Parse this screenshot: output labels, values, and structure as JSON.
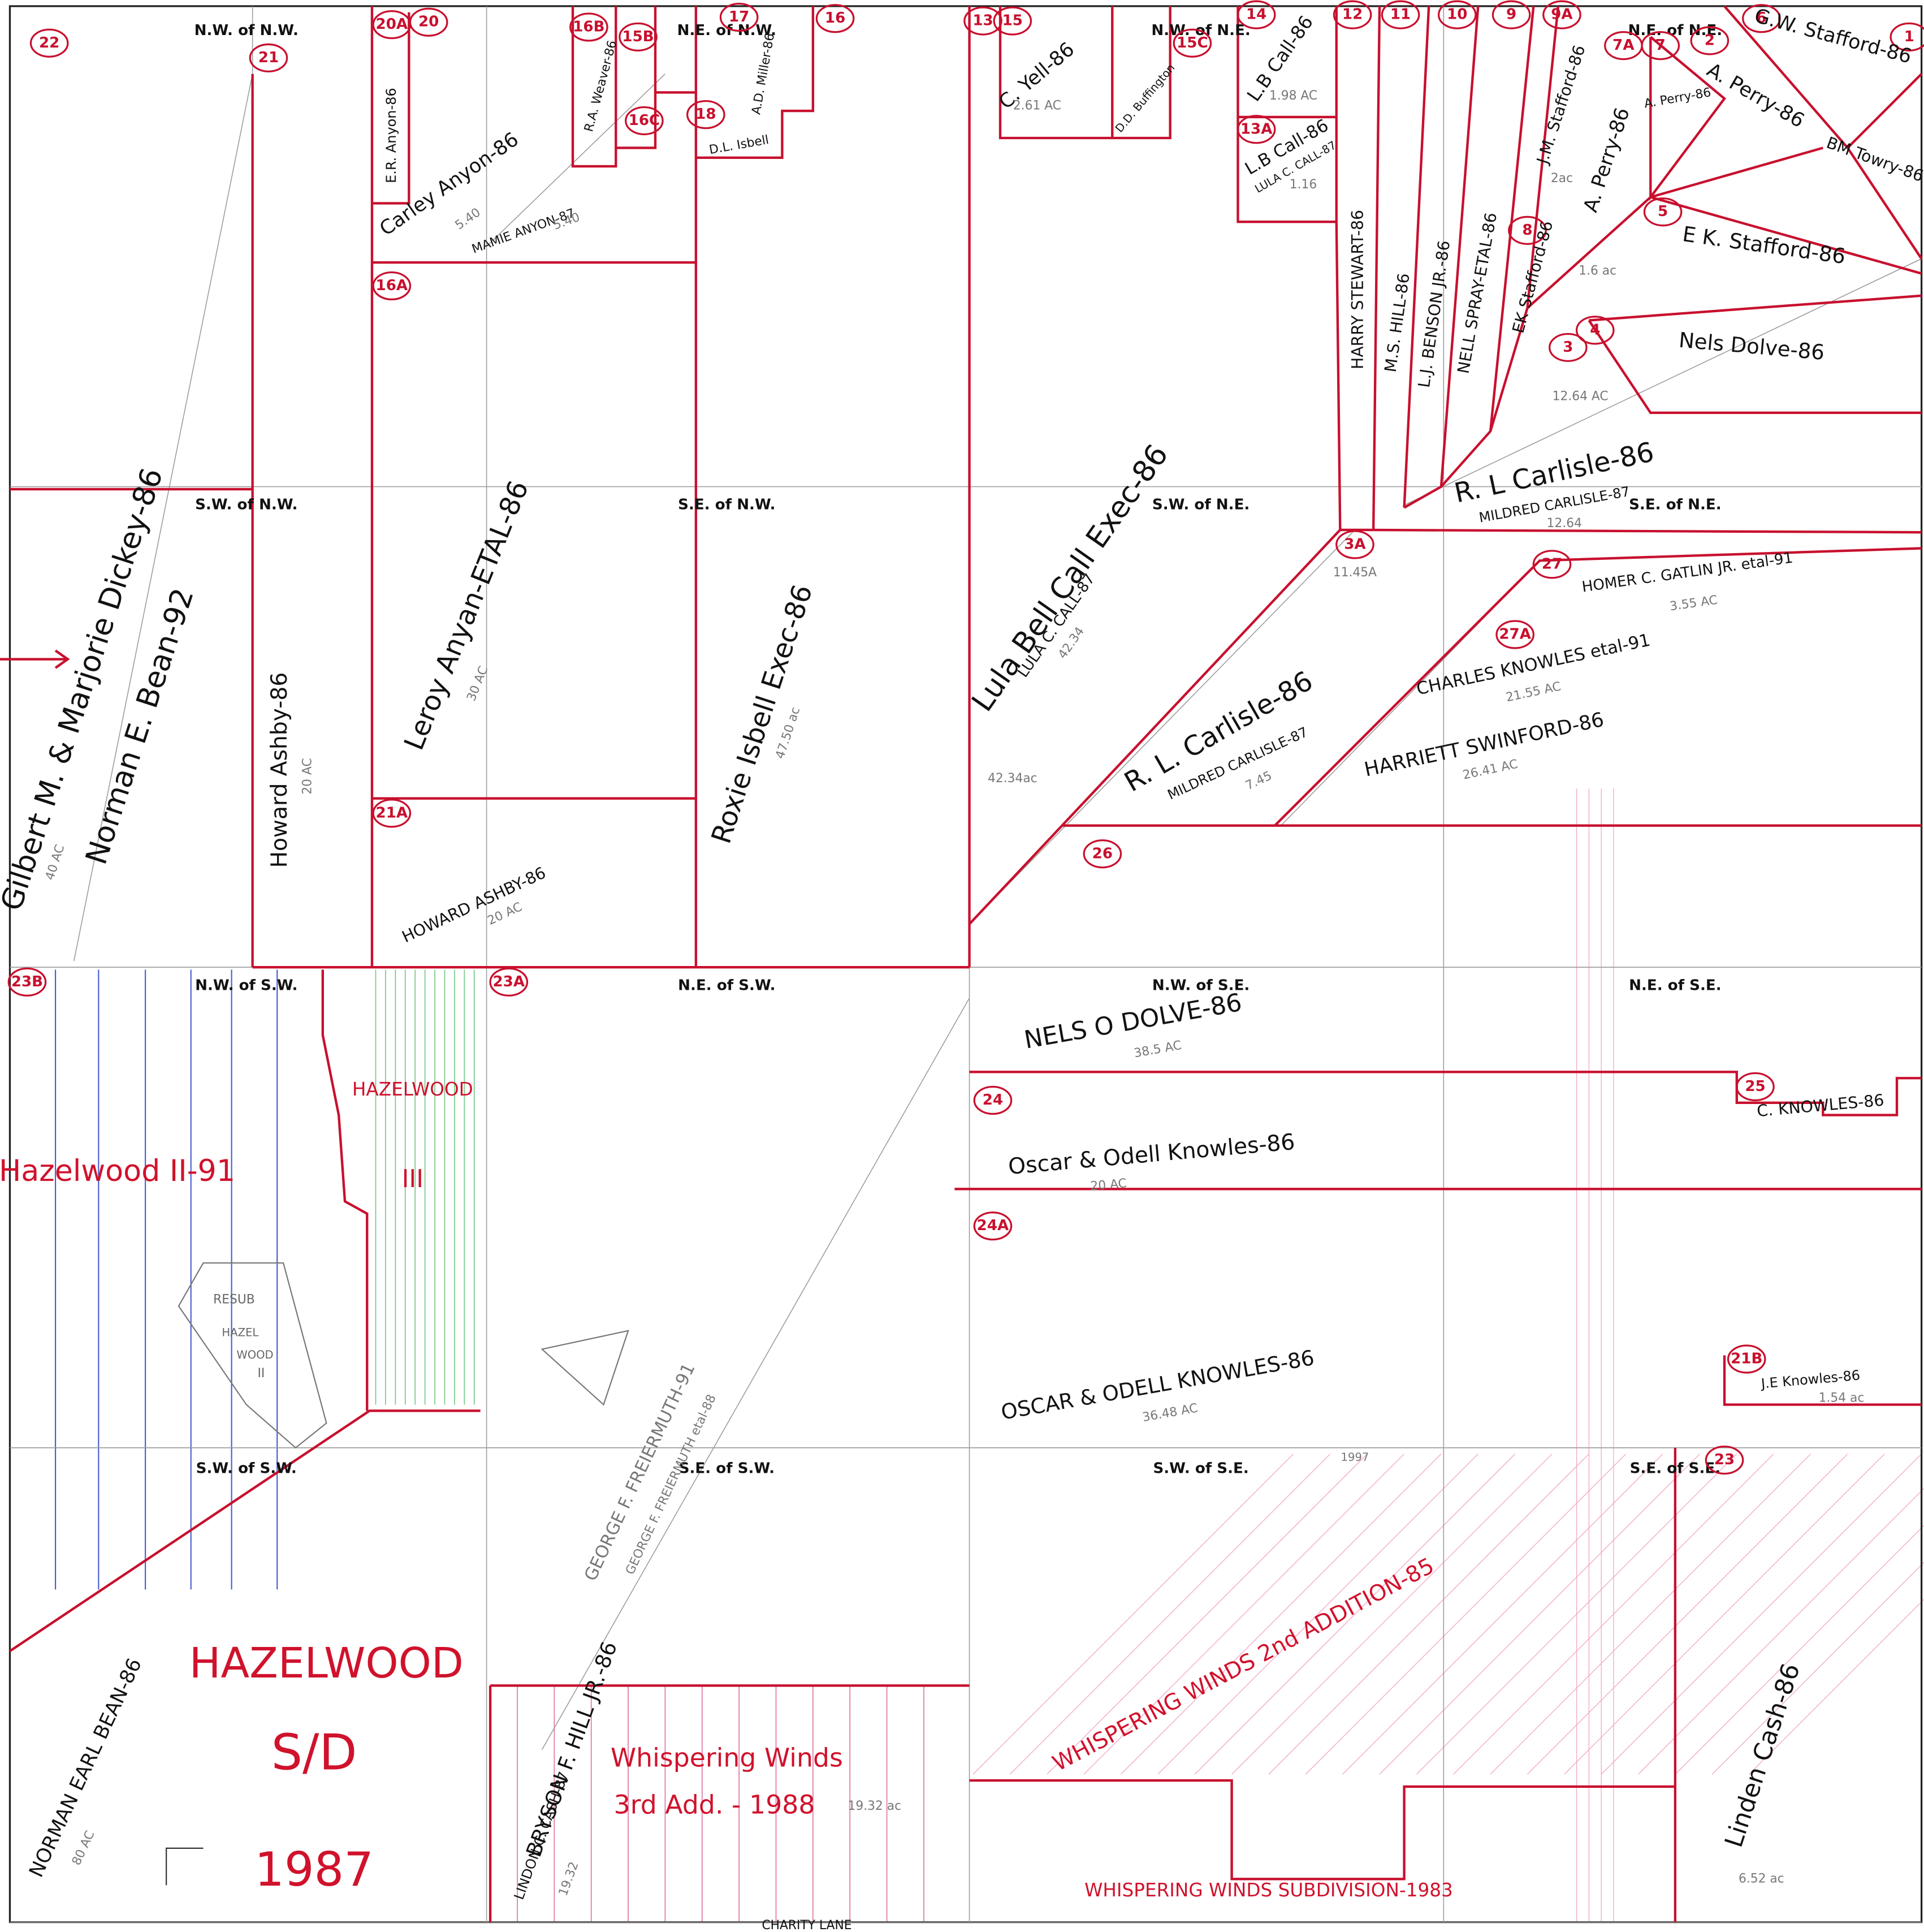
{
  "quarters": [
    "N.W. of N.W.",
    "N.E. of N.W.",
    "N.W. of N.E.",
    "N.E. of N.E.",
    "S.W. of N.W.",
    "S.E. of N.W.",
    "S.W. of N.E.",
    "S.E. of N.E.",
    "N.W. of S.W.",
    "N.E. of S.W.",
    "N.W. of S.E.",
    "N.E. of S.E.",
    "S.W. of S.W.",
    "S.E. of S.W.",
    "S.W. of S.E.",
    "S.E. of S.E."
  ],
  "parcels": [
    "22",
    "21",
    "20A",
    "20",
    "16B",
    "15B",
    "16C",
    "17",
    "18",
    "16",
    "16A",
    "21A",
    "23B",
    "23A",
    "13",
    "15",
    "15C",
    "14",
    "13A",
    "12",
    "11",
    "10",
    "9",
    "9A",
    "7A",
    "7",
    "2",
    "6",
    "1",
    "5",
    "8",
    "4",
    "3",
    "3A",
    "27",
    "27A",
    "26",
    "24",
    "24A",
    "25",
    "21B",
    "23"
  ],
  "owners": [
    "Gilbert M. & Marjorie Dickey-86",
    "Norman E. Bean-92",
    "Howard Ashby-86",
    "E.R. Anyon-86",
    "Carley Anyon-86",
    "MAMIE ANYON-87",
    "Leroy Anyan-ETAL-86",
    "HOWARD ASHBY-86",
    "Roxie Isbell Exec-86",
    "D.L. Isbell",
    "A.D. Miller-86",
    "R.A. Weaver-86",
    "C. Yell-86",
    "D.D. Buffington",
    "L.B Call-86",
    "L.B Call-86",
    "LULA C. CALL-87",
    "HARRY STEWART-86",
    "M.S. HILL-86",
    "L.J. BENSON JR.-86",
    "NELL SPRAY-ETAL-86",
    "EK Stafford-86",
    "J.M. Stafford-86",
    "A. Perry-86",
    "A. Perry-86",
    "A. Perry-86",
    "G.W. Stafford-86",
    "BM Towry-86",
    "E K. Stafford-86",
    "Nels Dolve-86",
    "Lula Bell Call Exec-86",
    "LULA C. CALL-87",
    "R. L Carlisle-86",
    "MILDRED CARLISLE-87",
    "R. L. Carlisle-86",
    "MILDRED CARLISLE-87",
    "HOMER C. GATLIN JR. etal-91",
    "CHARLES KNOWLES etal-91",
    "HARRIETT SWINFORD-86",
    "NELS O DOLVE-86",
    "Oscar & Odell Knowles-86",
    "C. KNOWLES-86",
    "OSCAR & ODELL KNOWLES-86",
    "J.E Knowles-86",
    "GEORGE F. FREIERMUTH-91",
    "GEORGE F. FREIERMUTH etal-88",
    "BRYSON F. HILL JR.-86",
    "LINDON C. CASH-87",
    "Linden Cash-86",
    "NORMAN EARL BEAN-86"
  ],
  "areas": [
    "40 AC",
    "20 AC",
    "5.40",
    "5.40",
    "30 AC",
    "20 AC",
    "47.50 ac",
    "2.61 AC",
    "1.98 AC",
    "1.16",
    "2ac",
    "1.6 ac",
    "12.64 AC",
    "42.34",
    "42.34ac",
    "12.64",
    "11.45A",
    "7.45",
    "3.55 AC",
    "21.55 AC",
    "26.41 AC",
    "38.5 AC",
    "20 AC",
    "36.48 AC",
    "1.54 ac",
    "19.32 ac",
    "19.32",
    "6.52 ac",
    "80 AC"
  ],
  "subdivisions": [
    "Hazelwood II-91",
    "HAZELWOOD",
    "III",
    "RESUB",
    "HAZEL",
    "WOOD",
    "II",
    "HAZELWOOD",
    "S/D",
    "1987",
    "Whispering Winds",
    "3rd Add. - 1988",
    "WHISPERING WINDS 2nd ADDITION-85",
    "WHISPERING WINDS SUBDIVISION-1983"
  ],
  "road": "CHARITY LANE",
  "note": "1997"
}
